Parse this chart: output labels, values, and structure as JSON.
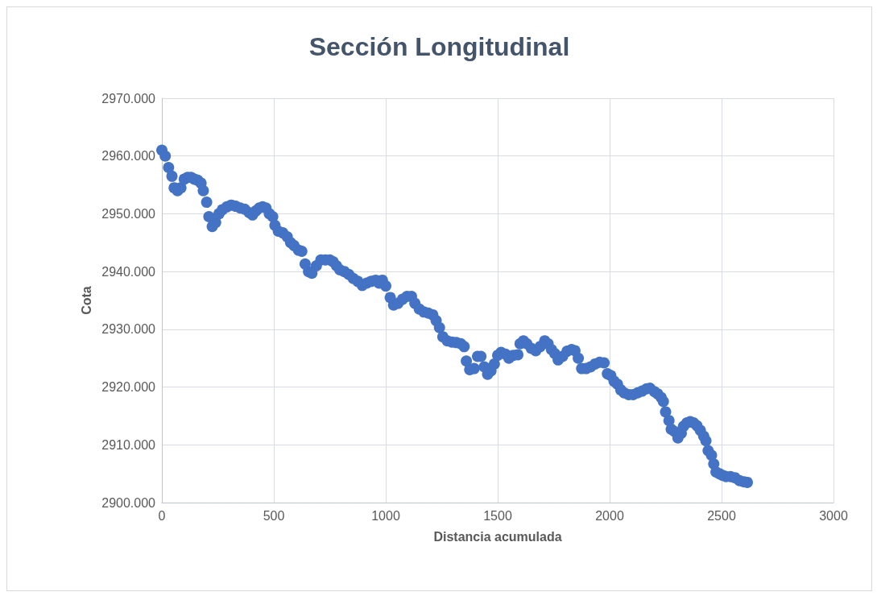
{
  "chart_data": {
    "type": "scatter",
    "title": "Sección Longitudinal",
    "xlabel": "Distancia acumulada",
    "ylabel": "Cota",
    "xlim": [
      0,
      3000
    ],
    "xticks": [
      0,
      500,
      1000,
      1500,
      2000,
      2500,
      3000
    ],
    "ylim": [
      2900,
      2970
    ],
    "yticks": [
      {
        "value": 2900,
        "label": "2900.000"
      },
      {
        "value": 2910,
        "label": "2910.000"
      },
      {
        "value": 2920,
        "label": "2920.000"
      },
      {
        "value": 2930,
        "label": "2930.000"
      },
      {
        "value": 2940,
        "label": "2940.000"
      },
      {
        "value": 2950,
        "label": "2950.000"
      },
      {
        "value": 2960,
        "label": "2960.000"
      },
      {
        "value": 2970,
        "label": "2970.000"
      }
    ],
    "grid": true,
    "marker": "circle",
    "series": [
      {
        "color": "#4472c4",
        "x": [
          0,
          15,
          30,
          45,
          55,
          70,
          85,
          100,
          115,
          130,
          145,
          160,
          175,
          185,
          200,
          210,
          225,
          240,
          255,
          270,
          290,
          310,
          330,
          350,
          370,
          390,
          405,
          420,
          435,
          450,
          465,
          480,
          495,
          505,
          520,
          540,
          560,
          575,
          590,
          610,
          625,
          640,
          655,
          670,
          690,
          710,
          730,
          750,
          765,
          780,
          795,
          815,
          835,
          855,
          875,
          895,
          915,
          935,
          955,
          970,
          985,
          1000,
          1020,
          1035,
          1055,
          1075,
          1095,
          1115,
          1130,
          1150,
          1170,
          1190,
          1210,
          1225,
          1240,
          1255,
          1275,
          1295,
          1315,
          1335,
          1350,
          1360,
          1375,
          1395,
          1410,
          1425,
          1440,
          1455,
          1470,
          1485,
          1500,
          1515,
          1535,
          1550,
          1570,
          1590,
          1600,
          1615,
          1630,
          1650,
          1670,
          1690,
          1710,
          1725,
          1740,
          1755,
          1770,
          1790,
          1810,
          1830,
          1845,
          1860,
          1875,
          1895,
          1915,
          1935,
          1955,
          1975,
          1990,
          2005,
          2020,
          2035,
          2050,
          2065,
          2085,
          2105,
          2125,
          2145,
          2165,
          2180,
          2200,
          2215,
          2230,
          2240,
          2250,
          2265,
          2275,
          2290,
          2305,
          2320,
          2330,
          2345,
          2360,
          2375,
          2390,
          2405,
          2420,
          2430,
          2440,
          2455,
          2465,
          2475,
          2490,
          2505,
          2520,
          2540,
          2560,
          2580,
          2600,
          2615
        ],
        "values": [
          2961,
          2960,
          2958,
          2956.5,
          2954.5,
          2954,
          2954.5,
          2956,
          2956.3,
          2956.3,
          2956,
          2955.8,
          2955.3,
          2954,
          2952,
          2949.5,
          2947.8,
          2948.5,
          2950,
          2950.7,
          2951.2,
          2951.5,
          2951.3,
          2951,
          2950.8,
          2950.2,
          2949.8,
          2950.5,
          2951,
          2951.2,
          2951,
          2950,
          2949.5,
          2948,
          2947,
          2946.7,
          2946,
          2945,
          2944.5,
          2943.7,
          2943.5,
          2941.3,
          2940,
          2939.7,
          2941,
          2942,
          2942,
          2942,
          2941.7,
          2941,
          2940.3,
          2940,
          2939.5,
          2938.8,
          2938.3,
          2937.6,
          2938,
          2938.3,
          2938.5,
          2938,
          2938.5,
          2937.5,
          2935.5,
          2934.2,
          2934.5,
          2935.2,
          2935.7,
          2935.7,
          2934.5,
          2933.5,
          2933,
          2932.8,
          2932.5,
          2931.5,
          2930.3,
          2928.7,
          2928,
          2927.8,
          2927.7,
          2927.5,
          2927,
          2924.5,
          2923,
          2923.2,
          2925.3,
          2925.3,
          2923.5,
          2922.2,
          2922.8,
          2924,
          2925.5,
          2926,
          2925.7,
          2925,
          2925.5,
          2925.6,
          2927.5,
          2928,
          2927.5,
          2926.7,
          2926.3,
          2927,
          2928,
          2927.5,
          2926.5,
          2925.8,
          2924.7,
          2925.3,
          2926.2,
          2926.5,
          2926.3,
          2925,
          2923.2,
          2923.2,
          2923.5,
          2924,
          2924.3,
          2924.2,
          2922.3,
          2922,
          2921,
          2920.5,
          2919.5,
          2919,
          2918.7,
          2918.7,
          2919,
          2919.3,
          2919.7,
          2919.8,
          2919.2,
          2918.8,
          2918.2,
          2917.5,
          2915.7,
          2914.2,
          2912.7,
          2912.3,
          2911.2,
          2912,
          2913.2,
          2913.8,
          2914,
          2913.8,
          2913.3,
          2912.5,
          2911.5,
          2910.7,
          2909,
          2908.2,
          2906.7,
          2905.3,
          2905,
          2904.7,
          2904.5,
          2904.5,
          2904.3,
          2903.8,
          2903.6,
          2903.5
        ]
      }
    ]
  }
}
